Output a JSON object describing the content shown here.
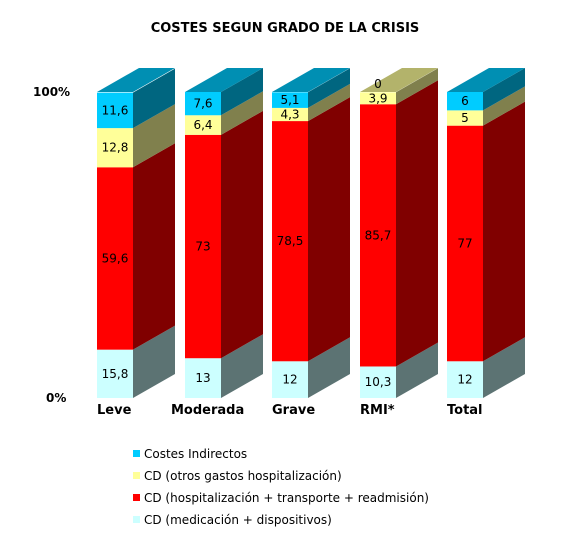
{
  "chart_data": {
    "type": "bar",
    "stacked": true,
    "percent_stacked": true,
    "three_d": true,
    "title": "COSTES SEGUN GRADO DE LA CRISIS",
    "ytick_labels": [
      "0%",
      "100%"
    ],
    "ylim": [
      0,
      100
    ],
    "categories": [
      "Leve",
      "Moderada",
      "Grave",
      "RMI*",
      "Total"
    ],
    "series": [
      {
        "name": "CD (medicación + dispositivos)",
        "color": "#ccffff",
        "values": [
          15.8,
          13,
          12,
          10.3,
          12
        ],
        "labels": [
          "15,8",
          "13",
          "12",
          "10,3",
          "12"
        ]
      },
      {
        "name": "CD (hospitalización + transporte + readmisión)",
        "color": "#ff0000",
        "values": [
          59.6,
          73,
          78.5,
          85.7,
          77
        ],
        "labels": [
          "59,6",
          "73",
          "78,5",
          "85,7",
          "77"
        ]
      },
      {
        "name": "CD (otros gastos hospitalización)",
        "color": "#ffff99",
        "values": [
          12.8,
          6.4,
          4.3,
          3.9,
          5
        ],
        "labels": [
          "12,8",
          "6,4",
          "4,3",
          "3,9",
          "5"
        ]
      },
      {
        "name": "Costes Indirectos",
        "color": "#00ccff",
        "values": [
          11.6,
          7.6,
          5.1,
          0,
          6
        ],
        "labels": [
          "11,6",
          "7,6",
          "5,1",
          "0",
          "6"
        ]
      }
    ],
    "legend_position": "bottom",
    "legend_order": [
      3,
      2,
      1,
      0
    ],
    "grid": false
  }
}
